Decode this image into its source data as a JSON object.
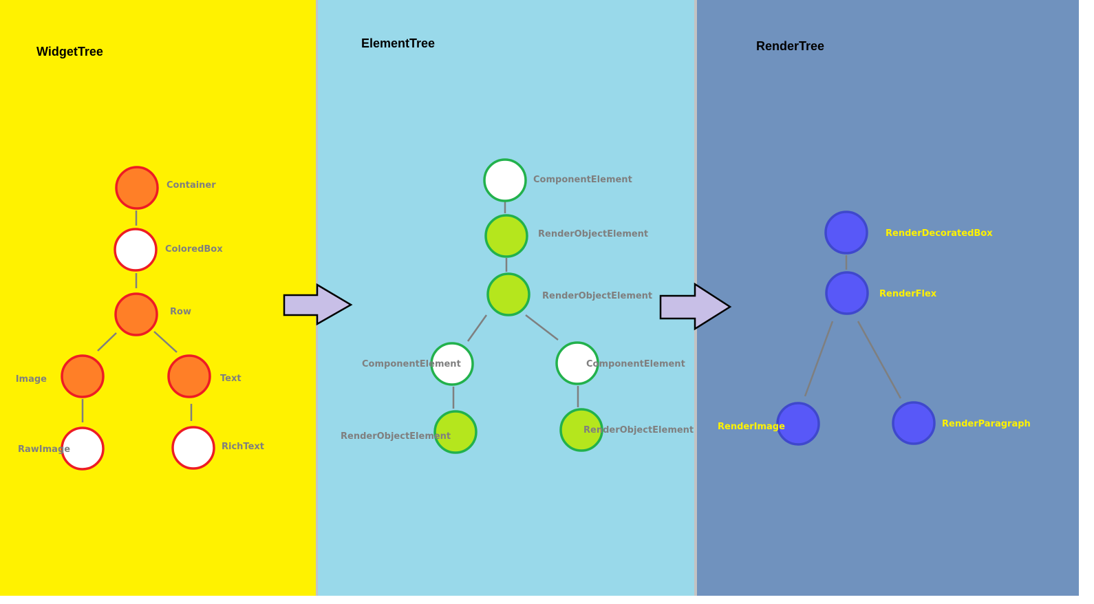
{
  "colors": {
    "widget_panel": "#fff200",
    "element_panel": "#99d9ea",
    "render_panel": "#7092be",
    "widget_node_fill": "#ff7f27",
    "widget_node_stroke": "#ed1c24",
    "element_node_fill": "#b5e61d",
    "element_node_stroke": "#22b14c",
    "render_node_fill": "#5858f8",
    "render_node_stroke": "#3f48cc",
    "empty_node_fill": "#ffffff",
    "edge": "#7f7f7f",
    "grey_label": "#7f7f7f",
    "yellow_label": "#fff200",
    "arrow_fill": "#c8bfe7",
    "arrow_stroke": "#000000"
  },
  "panels": {
    "widget": {
      "title": "WidgetTree"
    },
    "element": {
      "title": "ElementTree"
    },
    "render": {
      "title": "RenderTree"
    }
  },
  "widget_tree": {
    "nodes": [
      {
        "id": "container",
        "label": "Container",
        "style": "filled"
      },
      {
        "id": "coloredbox",
        "label": "ColoredBox",
        "style": "empty"
      },
      {
        "id": "row",
        "label": "Row",
        "style": "filled"
      },
      {
        "id": "image",
        "label": "Image",
        "style": "filled"
      },
      {
        "id": "text",
        "label": "Text",
        "style": "filled"
      },
      {
        "id": "rawimage",
        "label": "RawImage",
        "style": "empty"
      },
      {
        "id": "richtext",
        "label": "RichText",
        "style": "empty"
      }
    ],
    "edges": [
      [
        "container",
        "coloredbox"
      ],
      [
        "coloredbox",
        "row"
      ],
      [
        "row",
        "image"
      ],
      [
        "row",
        "text"
      ],
      [
        "image",
        "rawimage"
      ],
      [
        "text",
        "richtext"
      ]
    ]
  },
  "element_tree": {
    "nodes": [
      {
        "id": "comp_root",
        "label": "ComponentElement",
        "style": "empty"
      },
      {
        "id": "roe_1",
        "label": "RenderObjectElement",
        "style": "filled"
      },
      {
        "id": "roe_2",
        "label": "RenderObjectElement",
        "style": "filled"
      },
      {
        "id": "comp_left",
        "label": "ComponentElement",
        "style": "empty"
      },
      {
        "id": "comp_right",
        "label": "ComponentElement",
        "style": "empty"
      },
      {
        "id": "roe_left",
        "label": "RenderObjectElement",
        "style": "filled"
      },
      {
        "id": "roe_right",
        "label": "RenderObjectElement",
        "style": "filled"
      }
    ],
    "edges": [
      [
        "comp_root",
        "roe_1"
      ],
      [
        "roe_1",
        "roe_2"
      ],
      [
        "roe_2",
        "comp_left"
      ],
      [
        "roe_2",
        "comp_right"
      ],
      [
        "comp_left",
        "roe_left"
      ],
      [
        "comp_right",
        "roe_right"
      ]
    ]
  },
  "render_tree": {
    "nodes": [
      {
        "id": "decoratedbox",
        "label": "RenderDecoratedBox",
        "style": "filled"
      },
      {
        "id": "flex",
        "label": "RenderFlex",
        "style": "filled"
      },
      {
        "id": "image",
        "label": "RenderImage",
        "style": "filled"
      },
      {
        "id": "paragraph",
        "label": "RenderParagraph",
        "style": "filled"
      }
    ],
    "edges": [
      [
        "decoratedbox",
        "flex"
      ],
      [
        "flex",
        "image"
      ],
      [
        "flex",
        "paragraph"
      ]
    ]
  },
  "arrows": [
    {
      "from": "widget",
      "to": "element"
    },
    {
      "from": "element",
      "to": "render"
    }
  ]
}
